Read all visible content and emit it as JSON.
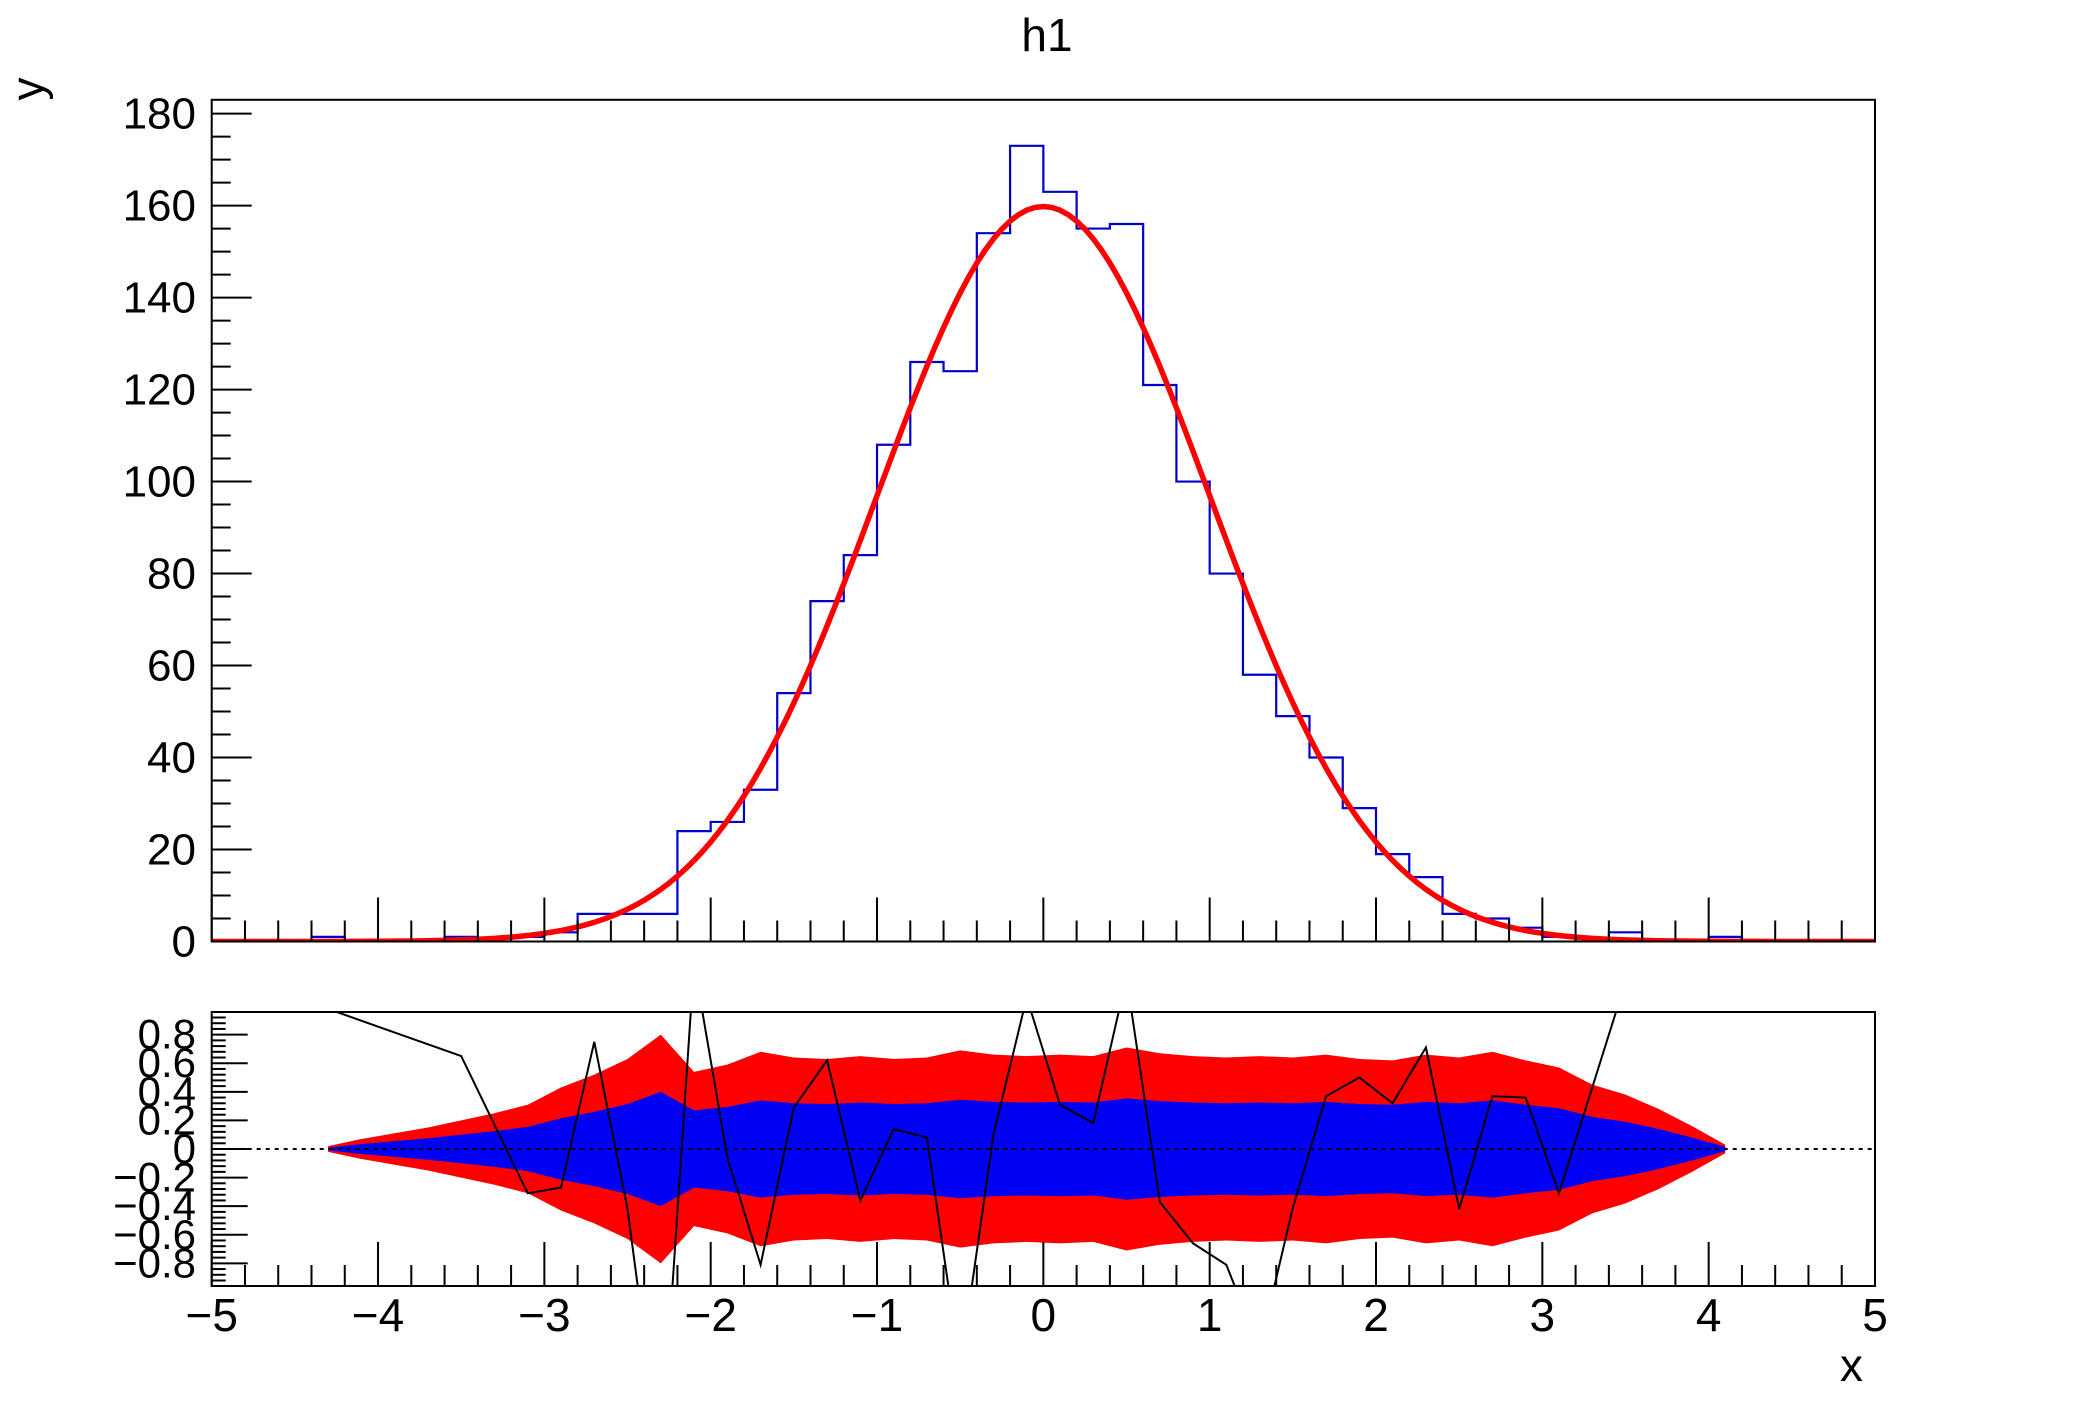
{
  "title": "h1",
  "axis_titles": {
    "x": "x",
    "y": "y"
  },
  "main_pad": {
    "ylim": [
      0,
      183
    ],
    "xlim": [
      -5,
      5
    ],
    "y_tick_step": 20,
    "y_minor_step": 5,
    "x_tick_step": 1,
    "x_minor_step": 0.2,
    "y_tick_labels": [
      "0",
      "20",
      "40",
      "60",
      "80",
      "100",
      "120",
      "140",
      "160",
      "180"
    ]
  },
  "ratio_pad": {
    "ylim": [
      -0.9585,
      0.9585
    ],
    "y_tick_step": 0.2,
    "y_minor_step": 0.04,
    "y_tick_labels": [
      "0.8",
      "0.6",
      "0.4",
      "0.2",
      "0",
      "−0.2",
      "−0.4",
      "−0.6",
      "−0.8"
    ],
    "x_tick_labels": [
      "−5",
      "−4",
      "−3",
      "−2",
      "−1",
      "0",
      "1",
      "2",
      "3",
      "4",
      "5"
    ]
  },
  "chart_data": {
    "type": "bar",
    "subtype": "histogram_with_gaussian_fit_and_residual_pulls",
    "title": "h1",
    "xlabel": "x",
    "ylabel": "y",
    "histogram": {
      "name": "h1",
      "n_bins": 50,
      "x_min": -5,
      "x_max": 5,
      "counts": [
        0,
        0,
        0,
        1,
        0,
        0,
        0,
        1,
        0,
        1,
        2,
        6,
        6,
        6,
        24,
        26,
        33,
        54,
        74,
        84,
        108,
        126,
        124,
        154,
        173,
        163,
        155,
        156,
        121,
        100,
        80,
        58,
        49,
        40,
        29,
        19,
        14,
        6,
        5,
        3,
        1,
        0,
        2,
        0,
        0,
        1,
        0,
        0,
        0,
        0
      ],
      "line_color": "#0000cc"
    },
    "fit": {
      "shape": "gaussian",
      "amplitude": 159.8,
      "mean": 0,
      "sigma": 1.0,
      "line_color": "#ff0000"
    },
    "residual": {
      "zero_line_y": 0,
      "line_color": "#000000",
      "points_x": [
        -4.3,
        -3.5,
        -3.1,
        -2.9,
        -2.7,
        -2.5,
        -2.3,
        -2.1,
        -1.9,
        -1.7,
        -1.5,
        -1.3,
        -1.1,
        -0.9,
        -0.7,
        -0.5,
        -0.3,
        -0.1,
        0.1,
        0.3,
        0.5,
        0.7,
        0.9,
        1.1,
        1.3,
        1.5,
        1.7,
        1.9,
        2.1,
        2.3,
        2.5,
        2.7,
        2.9,
        3.1,
        3.5,
        4.1
      ],
      "points_y": [
        0.98,
        0.65,
        -0.31,
        -0.27,
        0.75,
        -0.42,
        -2.18,
        1.3,
        -0.06,
        -0.81,
        0.29,
        0.62,
        -0.36,
        0.14,
        0.08,
        -1.53,
        0.1,
        1.06,
        0.31,
        0.18,
        1.2,
        -0.37,
        -0.66,
        -0.81,
        -1.4,
        -0.41,
        0.37,
        0.5,
        0.32,
        0.71,
        -0.42,
        0.37,
        0.36,
        -0.31,
        1.17,
        0.98
      ],
      "band_x": [
        -4.3,
        -4.1,
        -3.9,
        -3.7,
        -3.5,
        -3.3,
        -3.1,
        -2.9,
        -2.7,
        -2.5,
        -2.3,
        -2.1,
        -1.9,
        -1.7,
        -1.5,
        -1.3,
        -1.1,
        -0.9,
        -0.7,
        -0.5,
        -0.3,
        -0.1,
        0.1,
        0.3,
        0.5,
        0.7,
        0.9,
        1.1,
        1.3,
        1.5,
        1.7,
        1.9,
        2.1,
        2.3,
        2.5,
        2.7,
        2.9,
        3.1,
        3.3,
        3.5,
        3.7,
        3.9,
        4.1
      ],
      "band_two_sigma_half_width": [
        0.02,
        0.07,
        0.11,
        0.15,
        0.2,
        0.25,
        0.31,
        0.43,
        0.52,
        0.63,
        0.8,
        0.54,
        0.59,
        0.68,
        0.64,
        0.63,
        0.65,
        0.63,
        0.64,
        0.69,
        0.66,
        0.65,
        0.66,
        0.65,
        0.71,
        0.67,
        0.65,
        0.64,
        0.65,
        0.64,
        0.66,
        0.63,
        0.62,
        0.66,
        0.64,
        0.68,
        0.62,
        0.57,
        0.45,
        0.38,
        0.28,
        0.16,
        0.03
      ],
      "band_one_sigma_fraction": 0.5,
      "one_sigma_color": "#0000f5",
      "two_sigma_color": "#ff0000"
    },
    "legend": null,
    "grid": false
  },
  "colors": {
    "frame": "#000000",
    "background": "#ffffff"
  }
}
